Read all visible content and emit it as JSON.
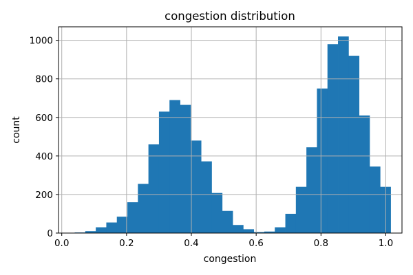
{
  "chart_data": {
    "type": "bar",
    "subtype": "histogram",
    "title": "congestion distribution",
    "xlabel": "congestion",
    "ylabel": "count",
    "xlim": [
      -0.01,
      1.05
    ],
    "ylim": [
      0,
      1070
    ],
    "grid": true,
    "bar_color": "#1f77b4",
    "grid_color": "#b0b0b0",
    "x_ticks": [
      0.0,
      0.2,
      0.4,
      0.6,
      0.8,
      1.0
    ],
    "x_tick_labels": [
      "0.0",
      "0.2",
      "0.4",
      "0.6",
      "0.8",
      "1.0"
    ],
    "y_ticks": [
      0,
      200,
      400,
      600,
      800,
      1000
    ],
    "y_tick_labels": [
      "0",
      "200",
      "400",
      "600",
      "800",
      "1000"
    ],
    "bin_edges": [
      0.04,
      0.0725,
      0.105,
      0.1375,
      0.17,
      0.2025,
      0.235,
      0.2675,
      0.3,
      0.3325,
      0.365,
      0.3975,
      0.43,
      0.4625,
      0.495,
      0.5275,
      0.56,
      0.5925,
      0.625,
      0.6575,
      0.69,
      0.7225,
      0.755,
      0.7875,
      0.82,
      0.8525,
      0.885,
      0.9175,
      0.95,
      0.9825
    ],
    "bin_width": 0.0325,
    "counts": [
      3,
      10,
      30,
      55,
      85,
      160,
      255,
      460,
      630,
      690,
      665,
      480,
      372,
      208,
      115,
      42,
      20,
      5,
      8,
      30,
      100,
      240,
      445,
      750,
      980,
      1020,
      920,
      610,
      345,
      240
    ]
  }
}
